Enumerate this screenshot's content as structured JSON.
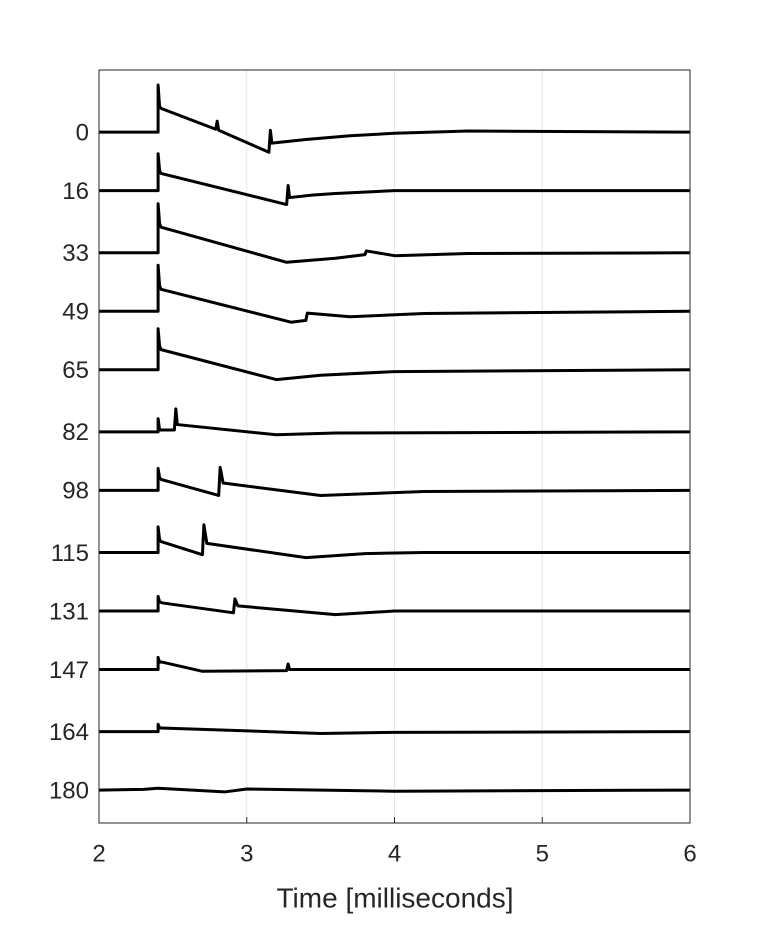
{
  "chart_data": {
    "type": "line",
    "xlabel": "Time [milliseconds]",
    "xlim": [
      2,
      6
    ],
    "xticks": [
      2,
      3,
      4,
      5,
      6
    ],
    "ylim": [
      -17,
      189
    ],
    "y_reversed": true,
    "yticks": [
      0,
      16,
      33,
      49,
      65,
      82,
      98,
      115,
      131,
      147,
      164,
      180
    ],
    "xgrid": true,
    "ygrid": false,
    "series": [
      {
        "color": "#000000",
        "x": [
          2,
          2.4,
          2.4,
          2.41,
          2.42,
          2.79,
          2.8,
          2.81,
          3.15,
          3.16,
          3.17,
          3.4,
          3.7,
          4,
          4.5,
          6
        ],
        "values": [
          0,
          0,
          -12.9,
          -7,
          -6.5,
          -0.8,
          -3,
          -0.5,
          5.5,
          -0.5,
          3,
          2,
          1,
          0.3,
          -0.3,
          0
        ]
      },
      {
        "color": "#000000",
        "x": [
          2,
          2.4,
          2.4,
          2.41,
          2.42,
          3.27,
          3.28,
          3.29,
          3.45,
          3.6,
          4,
          6
        ],
        "values": [
          16,
          16,
          5.9,
          10.5,
          11.3,
          19.8,
          14.6,
          17.9,
          17.2,
          16.8,
          16,
          16
        ]
      },
      {
        "color": "#000000",
        "x": [
          2,
          2.4,
          2.4,
          2.41,
          2.42,
          3.27,
          3.6,
          3.8,
          3.81,
          4,
          4.5,
          6
        ],
        "values": [
          33,
          33,
          19.6,
          25,
          26,
          35.6,
          34.5,
          33.5,
          32.5,
          33.8,
          33.2,
          33
        ]
      },
      {
        "color": "#000000",
        "x": [
          2,
          2.4,
          2.4,
          2.41,
          2.42,
          3.3,
          3.4,
          3.41,
          3.7,
          4.2,
          6
        ],
        "values": [
          49,
          49,
          36.4,
          42,
          43,
          52,
          51.5,
          49.5,
          50.5,
          49.6,
          49
        ]
      },
      {
        "color": "#000000",
        "x": [
          2,
          2.4,
          2.4,
          2.41,
          2.42,
          3.2,
          3.5,
          4,
          6
        ],
        "values": [
          65,
          65,
          53.8,
          58.5,
          59.5,
          67.7,
          66.5,
          65.5,
          65
        ]
      },
      {
        "color": "#000000",
        "x": [
          2,
          2.4,
          2.4,
          2.41,
          2.51,
          2.52,
          2.53,
          3.2,
          3.6,
          6
        ],
        "values": [
          82,
          82,
          78.4,
          81.5,
          81.5,
          75.7,
          80,
          82.8,
          82.3,
          82
        ]
      },
      {
        "color": "#000000",
        "x": [
          2,
          2.4,
          2.4,
          2.41,
          2.42,
          2.81,
          2.82,
          2.84,
          3.5,
          4.2,
          6
        ],
        "values": [
          98,
          98,
          92,
          94.5,
          95,
          99.4,
          91.7,
          96,
          99.4,
          98.3,
          98
        ]
      },
      {
        "color": "#000000",
        "x": [
          2,
          2.4,
          2.4,
          2.41,
          2.42,
          2.7,
          2.71,
          2.73,
          3.4,
          3.8,
          4.2,
          6
        ],
        "values": [
          115,
          115,
          108,
          111.5,
          112,
          115.6,
          107.4,
          112.5,
          116.4,
          115.3,
          115,
          115
        ]
      },
      {
        "color": "#000000",
        "x": [
          2,
          2.4,
          2.4,
          2.41,
          2.43,
          2.91,
          2.92,
          2.94,
          3.6,
          4,
          6
        ],
        "values": [
          131,
          131,
          127,
          128.5,
          128.8,
          131.5,
          127.7,
          129.6,
          132,
          131,
          131
        ]
      },
      {
        "color": "#000000",
        "x": [
          2,
          2.4,
          2.4,
          2.41,
          2.43,
          2.7,
          3.27,
          3.28,
          3.29,
          4,
          6
        ],
        "values": [
          147,
          147,
          143.7,
          145,
          145,
          147.5,
          147.3,
          145.5,
          147,
          147,
          147
        ]
      },
      {
        "color": "#000000",
        "x": [
          2,
          2.4,
          2.4,
          2.41,
          2.42,
          3.5,
          4,
          6
        ],
        "values": [
          164,
          164,
          162,
          163,
          163,
          164.5,
          164.2,
          164
        ]
      },
      {
        "color": "#000000",
        "x": [
          2,
          2.3,
          2.4,
          2.85,
          3,
          4,
          6
        ],
        "values": [
          180,
          179.8,
          179.5,
          180.5,
          179.7,
          180.3,
          180
        ]
      }
    ]
  }
}
